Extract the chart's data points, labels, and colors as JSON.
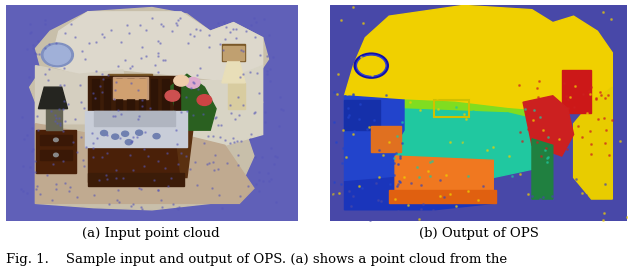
{
  "fig_width": 6.4,
  "fig_height": 2.69,
  "dpi": 100,
  "bg_color": "#ffffff",
  "caption_a": "(a) Input point cloud",
  "caption_b": "(b) Output of OPS",
  "fig_caption": "Fig. 1.    Sample input and output of OPS. (a) shows a point cloud from the",
  "caption_fontsize": 9.5,
  "fig_caption_fontsize": 9.5,
  "panel_bg_left": "#6060b0",
  "panel_bg_right": "#4848a8"
}
